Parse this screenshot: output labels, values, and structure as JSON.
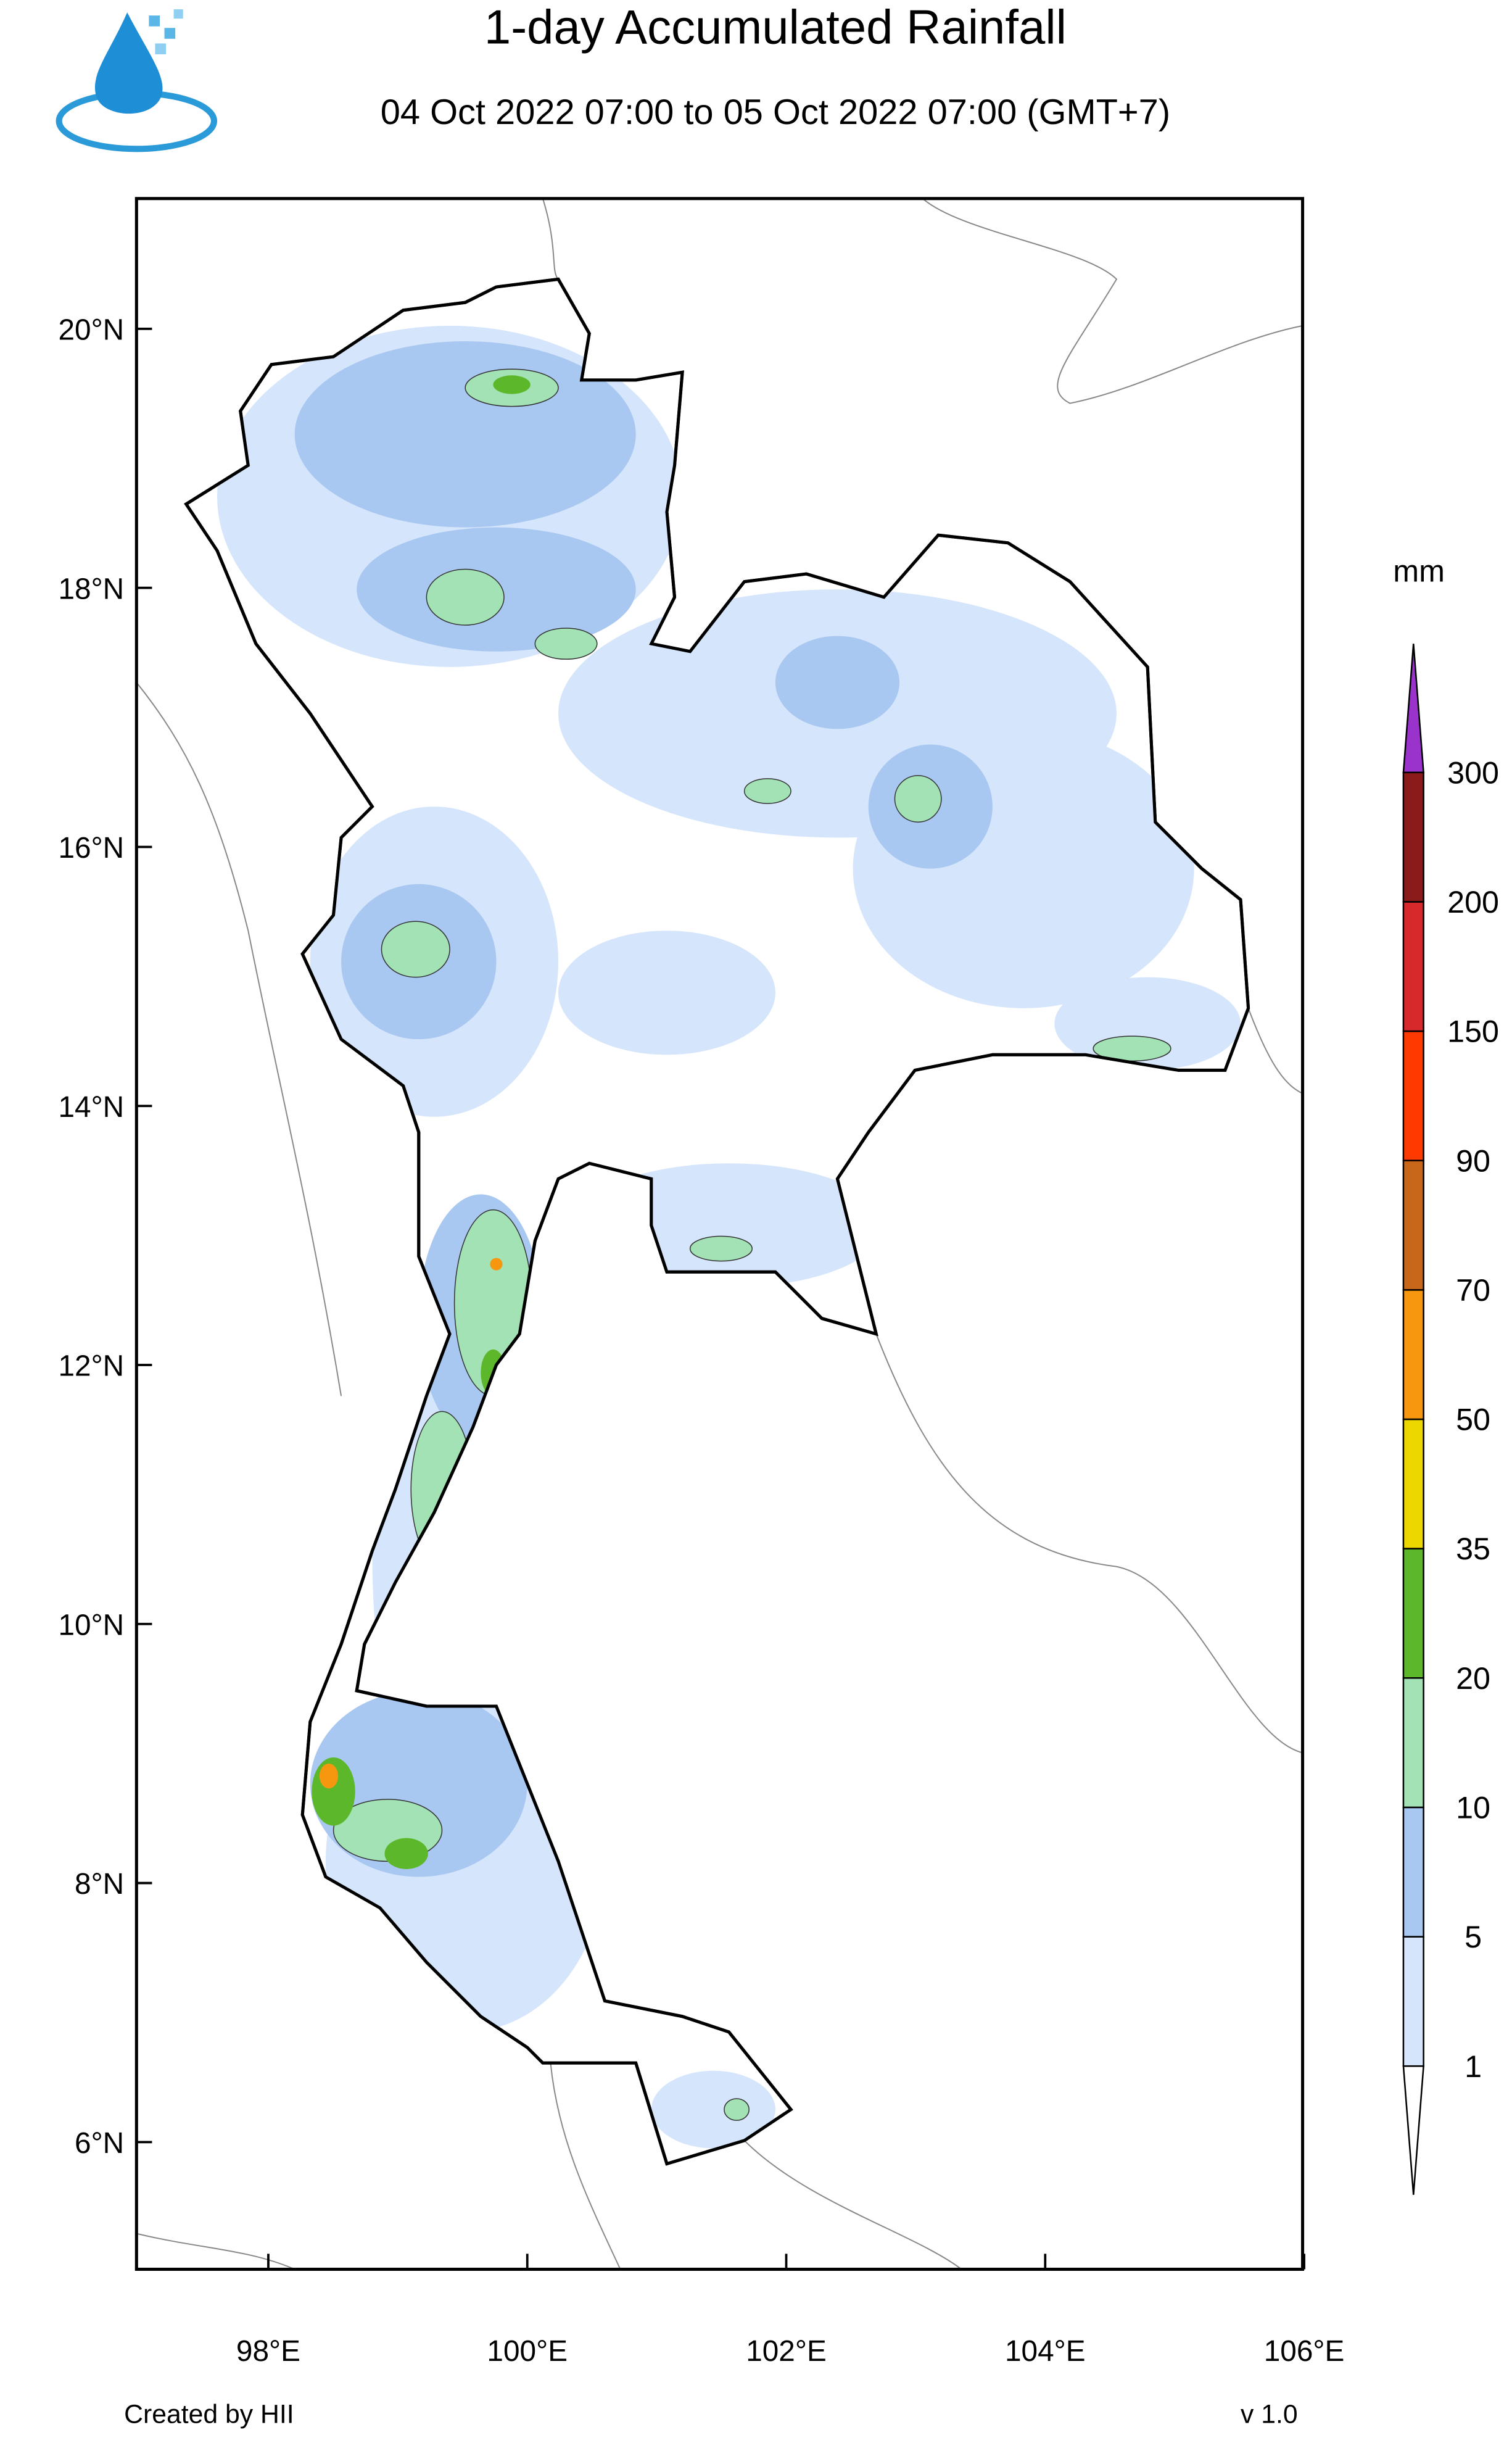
{
  "header": {
    "title": "1-day Accumulated Rainfall",
    "subtitle": "04 Oct 2022 07:00 to 05 Oct 2022 07:00 (GMT+7)"
  },
  "map": {
    "lat_ticks": [
      "20°N",
      "18°N",
      "16°N",
      "14°N",
      "12°N",
      "10°N",
      "8°N",
      "6°N"
    ],
    "lon_ticks": [
      "98°E",
      "100°E",
      "102°E",
      "104°E",
      "106°E"
    ]
  },
  "legend": {
    "unit": "mm",
    "levels": [
      "1",
      "5",
      "10",
      "20",
      "35",
      "50",
      "70",
      "90",
      "150",
      "200",
      "300"
    ],
    "colors": [
      "#ffffff",
      "#d5e5fb",
      "#a8c7f1",
      "#a2e2b4",
      "#5cb82a",
      "#ecd800",
      "#f7960f",
      "#c8661a",
      "#ff3a00",
      "#d7282c",
      "#8b1a1a",
      "#9a33cc"
    ]
  },
  "footer": {
    "credit": "Created by HII",
    "version": "v 1.0"
  }
}
